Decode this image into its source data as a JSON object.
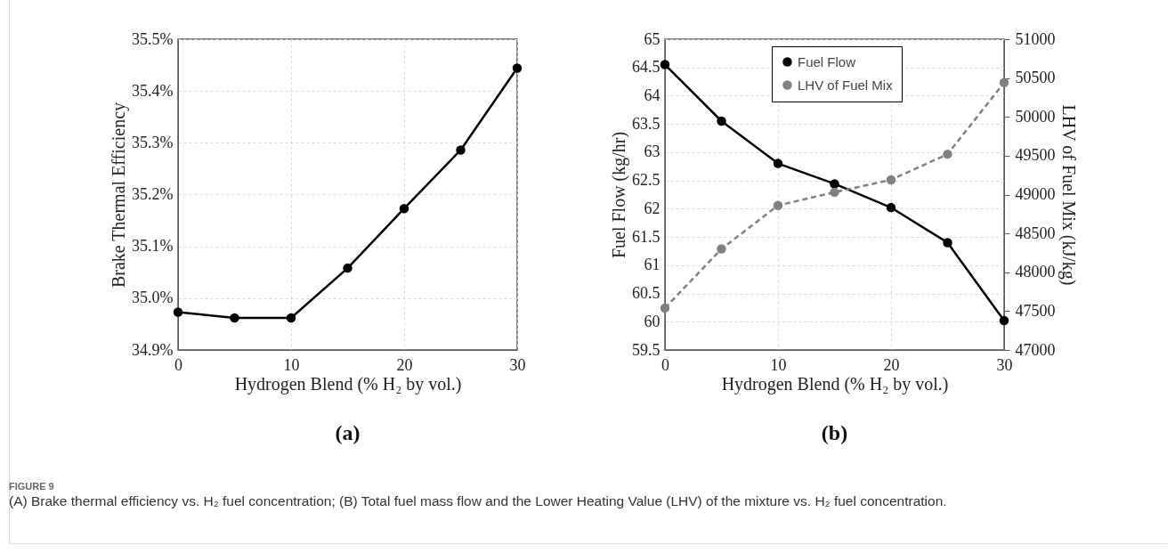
{
  "chart_data": [
    {
      "type": "line",
      "title": "(a)",
      "xlabel": "Hydrogen Blend (% H₂ by vol.)",
      "ylabel": "Brake Thermal Efficiency",
      "x": [
        0,
        5,
        10,
        15,
        20,
        25,
        30
      ],
      "series": [
        {
          "color": "#000000",
          "values": [
            34.973,
            34.962,
            34.962,
            35.058,
            35.173,
            35.286,
            35.444
          ]
        }
      ],
      "xlim": [
        0,
        30
      ],
      "xticks": [
        0,
        10,
        20,
        30
      ],
      "ylim": [
        34.9,
        35.5
      ],
      "yticks": [
        {
          "value": 34.9,
          "label": "34.9%"
        },
        {
          "value": 35.0,
          "label": "35.0%"
        },
        {
          "value": 35.1,
          "label": "35.1%"
        },
        {
          "value": 35.2,
          "label": "35.2%"
        },
        {
          "value": 35.3,
          "label": "35.3%"
        },
        {
          "value": 35.4,
          "label": "35.4%"
        },
        {
          "value": 35.5,
          "label": "35.5%"
        }
      ],
      "grid": true,
      "marker": "circle",
      "line_style": "solid",
      "annotations": [
        "FIGURE 9",
        "(A) Brake thermal efficiency vs. H₂ fuel concentration; (B) Total fuel mass flow and the Lower Heating Value (LHV) of the mixture vs. H₂ fuel concentration."
      ]
    },
    {
      "type": "line",
      "title": "(b)",
      "xlabel": "Hydrogen Blend (% H₂ by vol.)",
      "ylabel": "Fuel Flow (kg/hr)",
      "y2label": "LHV of Fuel Mix (kJ/kg)",
      "x": [
        0,
        5,
        10,
        15,
        20,
        25,
        30
      ],
      "series": [
        {
          "name": "Fuel Flow",
          "color": "#000000",
          "line_style": "solid",
          "values": [
            64.55,
            63.55,
            62.8,
            62.44,
            62.02,
            61.4,
            60.02
          ]
        },
        {
          "name": "LHV of Fuel Mix",
          "color": "#808080",
          "line_style": "dashed",
          "axis": "y2",
          "values": [
            47540,
            48300,
            48860,
            49030,
            49190,
            49520,
            50440
          ]
        }
      ],
      "xlim": [
        0,
        30
      ],
      "xticks": [
        0,
        10,
        20,
        30
      ],
      "ylim": [
        59.5,
        65
      ],
      "yticks": [
        59.5,
        60,
        60.5,
        61,
        61.5,
        62,
        62.5,
        63,
        63.5,
        64,
        64.5,
        65
      ],
      "y2lim": [
        47000,
        51000
      ],
      "y2ticks": [
        47000,
        47500,
        48000,
        48500,
        49000,
        49500,
        50000,
        50500,
        51000
      ],
      "grid": true,
      "marker": "circle",
      "legend": "top"
    }
  ]
}
